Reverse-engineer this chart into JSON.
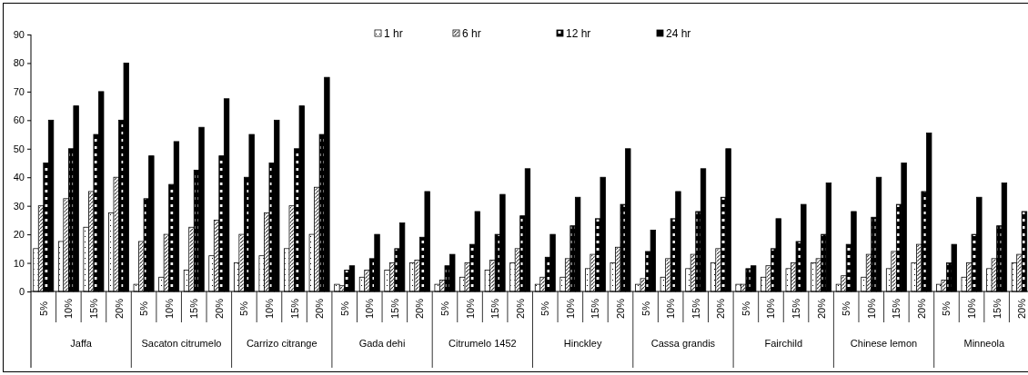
{
  "chart_data": {
    "type": "bar",
    "categories": [
      "5%",
      "10%",
      "15%",
      "20%",
      "5%",
      "10%",
      "15%",
      "20%",
      "5%",
      "10%",
      "15%",
      "20%",
      "5%",
      "10%",
      "15%",
      "20%",
      "5%",
      "10%",
      "15%",
      "20%",
      "5%",
      "10%",
      "15%",
      "20%",
      "5%",
      "10%",
      "15%",
      "20%",
      "5%",
      "10%",
      "15%",
      "20%",
      "5%",
      "10%",
      "15%",
      "20%",
      "5%",
      "10%",
      "15%",
      "20%"
    ],
    "annotations": [
      "Jaffa",
      "Sacaton citrumelo",
      "Carrizo citrange",
      "Gada dehi",
      "Citrumelo 1452",
      "Hinckley",
      "Cassa grandis",
      "Fairchild",
      "Chinese lemon",
      "Minneola"
    ],
    "series": [
      {
        "name": "1 hr",
        "color": "#ffffff",
        "values": [
          15,
          17.5,
          22.5,
          27.5,
          2.5,
          5,
          7.5,
          12.5,
          10,
          12.5,
          15,
          20,
          2.5,
          5,
          7.5,
          10,
          2.5,
          5,
          7.5,
          10,
          2.5,
          5,
          8,
          10,
          2.5,
          5,
          8,
          10,
          2.5,
          5,
          8,
          10,
          2.5,
          5,
          8,
          10,
          2.5,
          5,
          8,
          10
        ]
      },
      {
        "name": "6 hr",
        "color": "#ffffff",
        "values": [
          30,
          32.5,
          35,
          40,
          17.5,
          20,
          22.5,
          25,
          20,
          27.5,
          30,
          36.5,
          2,
          7.5,
          10,
          11,
          4,
          10,
          11,
          15,
          5,
          11.5,
          13,
          15.5,
          4.5,
          11.5,
          13,
          15,
          2.5,
          9,
          10,
          11.5,
          5.5,
          13,
          14,
          16.5,
          4,
          10,
          11.5,
          13
        ]
      },
      {
        "name": "12 hr",
        "color": "#000000",
        "values": [
          45,
          50,
          55,
          60,
          32.5,
          37.5,
          42.5,
          47.5,
          40,
          45,
          50,
          55,
          7.5,
          11.5,
          15,
          19,
          9,
          16.5,
          20,
          26.5,
          12,
          23,
          25.5,
          30.5,
          14,
          25.5,
          28,
          33,
          8,
          15,
          17.5,
          20,
          16.5,
          26,
          30.5,
          35,
          10,
          20,
          23,
          28
        ]
      },
      {
        "name": "24 hr",
        "color": "#000000",
        "values": [
          60,
          65,
          70,
          80,
          47.5,
          52.5,
          57.5,
          67.5,
          55,
          60,
          65,
          75,
          9,
          20,
          24,
          35,
          13,
          28,
          34,
          43,
          20,
          33,
          40,
          50,
          21.5,
          35,
          43,
          50,
          9,
          25.5,
          30.5,
          38,
          28,
          40,
          45,
          55.5,
          16.5,
          33,
          38,
          null
        ]
      }
    ],
    "ylim": [
      0,
      90
    ],
    "yticks": [
      0,
      10,
      20,
      30,
      40,
      50,
      60,
      70,
      80,
      90
    ],
    "legend": "top"
  }
}
